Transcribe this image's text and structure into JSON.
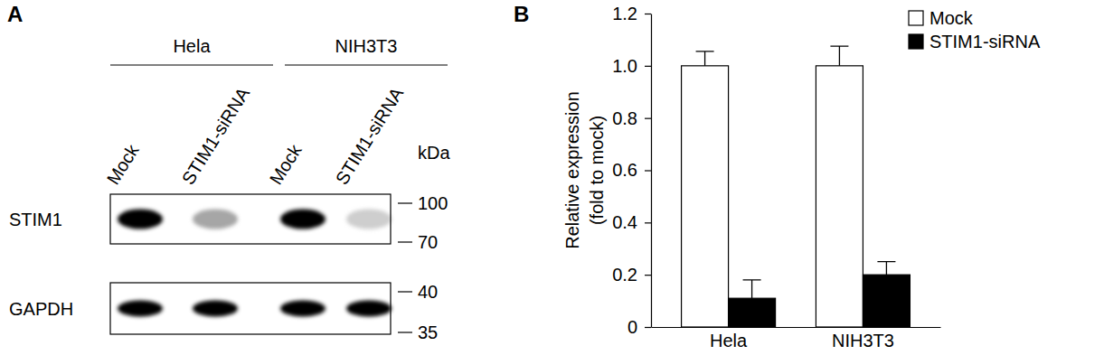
{
  "chart_data": [
    {
      "type": "blot",
      "title": "A",
      "groups": [
        "Hela",
        "NIH3T3"
      ],
      "lanes": [
        [
          "Mock",
          "STIM1-siRNA"
        ],
        [
          "Mock",
          "STIM1-siRNA"
        ]
      ],
      "marker_label": "kDa",
      "rows": [
        {
          "label": "STIM1",
          "intensity": [
            [
              1.0,
              0.45
            ],
            [
              1.0,
              0.3
            ]
          ],
          "markers": [
            100,
            70
          ]
        },
        {
          "label": "GAPDH",
          "intensity": [
            [
              1.0,
              1.0
            ],
            [
              1.0,
              1.0
            ]
          ],
          "markers": [
            40,
            35
          ]
        }
      ]
    },
    {
      "type": "bar",
      "title": "B",
      "categories": [
        "Hela",
        "NIH3T3"
      ],
      "y_label": [
        "Relative expression",
        "(fold to mock)"
      ],
      "series": [
        {
          "name": "Mock",
          "color": "#ffffff",
          "values": [
            1.0,
            1.0
          ],
          "errors": [
            0.055,
            0.075
          ]
        },
        {
          "name": "STIM1-siRNA",
          "color": "#000000",
          "values": [
            0.11,
            0.2
          ],
          "errors": [
            0.07,
            0.05
          ]
        }
      ],
      "ylim": [
        0,
        1.2
      ],
      "yticks": [
        0,
        0.2,
        0.4,
        0.6,
        0.8,
        {
          "value": 1,
          "label": "1.0"
        },
        1.2
      ],
      "legend": "upper right",
      "grid": false
    }
  ]
}
